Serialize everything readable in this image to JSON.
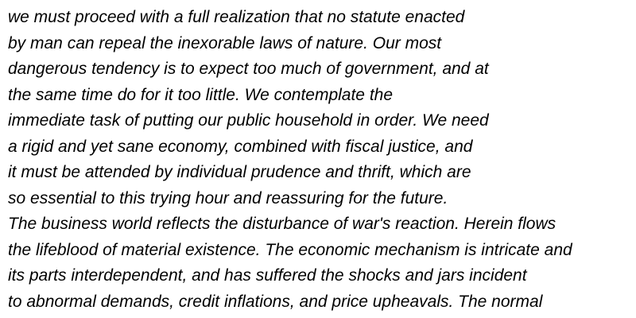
{
  "document": {
    "lines": [
      "we must proceed with a full realization that no statute enacted",
      "by man can repeal the inexorable laws of nature. Our most",
      "dangerous tendency is to expect too much of government, and at",
      "the same time do for it too little. We contemplate the",
      "immediate task of putting our public household in order. We need",
      "a rigid and yet sane economy, combined with fiscal justice, and",
      "it must be attended by individual prudence and thrift, which are",
      "so essential to this trying hour and reassuring for the future.",
      "The business world reflects the disturbance of war's reaction. Herein flows",
      "the lifeblood of material existence. The economic mechanism is intricate and",
      "its parts interdependent, and has suffered the shocks and jars incident",
      "to abnormal demands, credit inflations, and price upheavals. The normal"
    ]
  }
}
